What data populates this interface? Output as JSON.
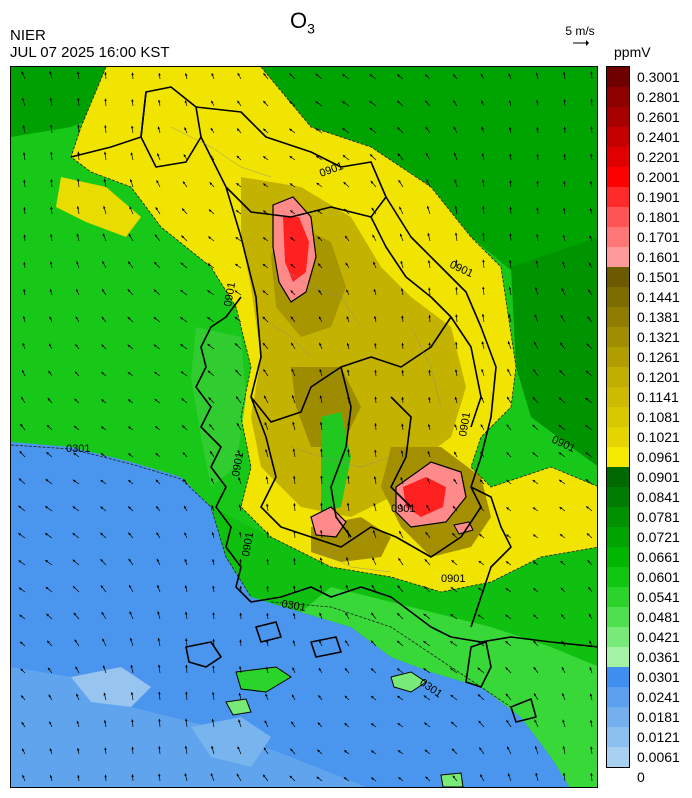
{
  "header": {
    "title_main": "O",
    "title_sub": "3",
    "agency": "NIER",
    "timestamp": "JUL 07 2025 16:00 KST",
    "wind_reference": "5 m/s",
    "unit": "ppmV"
  },
  "legend": {
    "labels": [
      "0.3001",
      "0.2801",
      "0.2601",
      "0.2401",
      "0.2201",
      "0.2001",
      "0.1901",
      "0.1801",
      "0.1701",
      "0.1601",
      "0.1501",
      "0.1441",
      "0.1381",
      "0.1321",
      "0.1261",
      "0.1201",
      "0.1141",
      "0.1081",
      "0.1021",
      "0.0961",
      "0.0901",
      "0.0841",
      "0.0781",
      "0.0721",
      "0.0661",
      "0.0601",
      "0.0541",
      "0.0481",
      "0.0421",
      "0.0361",
      "0.0301",
      "0.0241",
      "0.0181",
      "0.0121",
      "0.0061",
      "0"
    ],
    "colors": [
      "#6e0000",
      "#8c0000",
      "#a80000",
      "#c40000",
      "#e00000",
      "#ff0000",
      "#ff2a2a",
      "#ff5555",
      "#ff7676",
      "#ff9a9a",
      "#6b5a00",
      "#7d6c00",
      "#8f7d00",
      "#a08e00",
      "#b09e00",
      "#c0ae00",
      "#ccbb00",
      "#d8c800",
      "#e4d500",
      "#f4ea00",
      "#006a00",
      "#007d00",
      "#009100",
      "#00a400",
      "#00b600",
      "#10c610",
      "#2ad42a",
      "#4ee04e",
      "#78ea78",
      "#a4f2a4",
      "#3f8ff0",
      "#5aa0ee",
      "#74b0ee",
      "#8cc0ee",
      "#a8d0f0"
    ]
  },
  "map": {
    "contour_labels": [
      {
        "text": "0301",
        "role": "sea-contour"
      },
      {
        "text": "0301",
        "role": "southwest-contour"
      },
      {
        "text": "0301",
        "role": "south-coast-contour"
      },
      {
        "text": "0901",
        "role": "north-contour"
      },
      {
        "text": "0901",
        "role": "west-contour"
      },
      {
        "text": "0901",
        "role": "east-contour"
      },
      {
        "text": "0901",
        "role": "mid-contour"
      },
      {
        "text": "0901",
        "role": "southeast-contour"
      },
      {
        "text": "0901",
        "role": "south-contour"
      },
      {
        "text": "0901",
        "role": "southwest-inland-contour"
      },
      {
        "text": "0901",
        "role": "right-edge-contour"
      },
      {
        "text": "0901",
        "role": "yellow-north-contour"
      }
    ]
  }
}
